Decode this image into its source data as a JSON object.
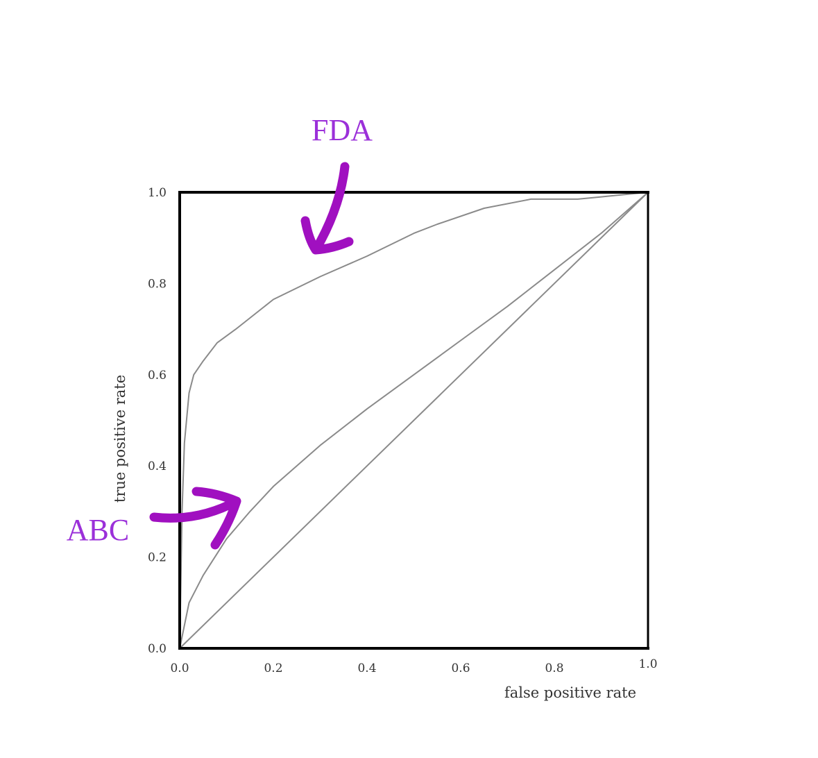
{
  "chart_data": {
    "type": "line",
    "title": "",
    "xlabel": "false positive rate",
    "ylabel": "true positive rate",
    "xlim": [
      0,
      1
    ],
    "ylim": [
      0,
      1
    ],
    "x_tick_labels": [
      "0.0",
      "0.2",
      "0.4",
      "0.6",
      "0.8",
      "1.0"
    ],
    "y_tick_labels": [
      "0.0",
      "0.2",
      "0.4",
      "0.6",
      "0.8",
      "1.0"
    ],
    "grid": false,
    "series": [
      {
        "x": [
          0,
          0.005,
          0.01,
          0.02,
          0.03,
          0.05,
          0.08,
          0.12,
          0.2,
          0.3,
          0.4,
          0.5,
          0.55,
          0.65,
          0.75,
          0.85,
          0.9,
          1.0
        ],
        "y": [
          0,
          0.3,
          0.45,
          0.56,
          0.6,
          0.63,
          0.67,
          0.7,
          0.765,
          0.815,
          0.86,
          0.91,
          0.93,
          0.965,
          0.985,
          0.985,
          0.99,
          1.0
        ]
      },
      {
        "x": [
          0,
          0.02,
          0.05,
          0.1,
          0.15,
          0.2,
          0.3,
          0.4,
          0.5,
          0.6,
          0.7,
          0.8,
          0.9,
          1.0
        ],
        "y": [
          0,
          0.1,
          0.16,
          0.24,
          0.3,
          0.355,
          0.445,
          0.525,
          0.6,
          0.675,
          0.75,
          0.83,
          0.91,
          1.0
        ]
      },
      {
        "x": [
          0,
          1
        ],
        "y": [
          0,
          1
        ]
      }
    ],
    "annotations": [
      {
        "text": "FDA",
        "color": "#9B30D9",
        "arrow_color": "#A010C0"
      },
      {
        "text": "ABC",
        "color": "#9B30D9",
        "arrow_color": "#A010C0"
      }
    ],
    "colors": {
      "curve": "#8a8a8a",
      "frame": "#000000",
      "text": "#333333"
    }
  }
}
